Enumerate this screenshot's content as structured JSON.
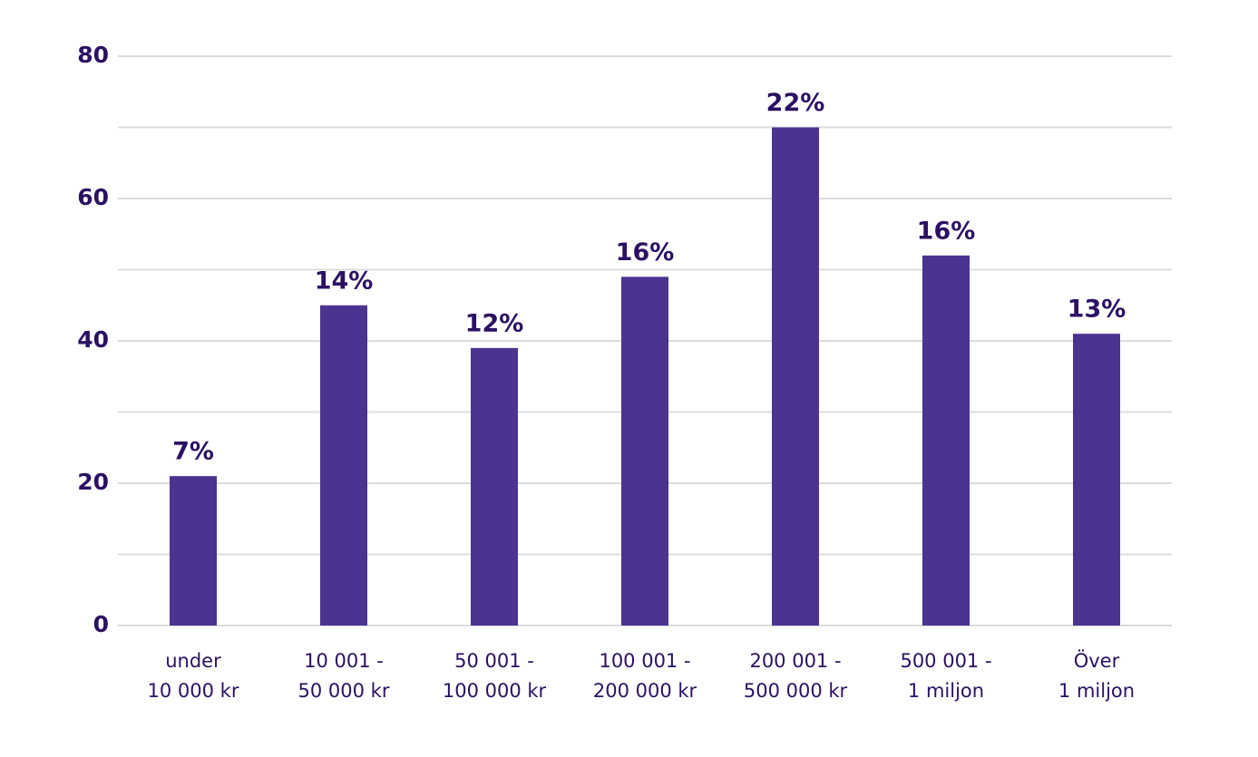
{
  "chart_data": {
    "type": "bar",
    "categories": [
      [
        "under",
        "10 000 kr"
      ],
      [
        "10 001 -",
        "50 000 kr"
      ],
      [
        "50 001 -",
        "100 000 kr"
      ],
      [
        "100 001 -",
        "200 000 kr"
      ],
      [
        "200 001 -",
        "500 000 kr"
      ],
      [
        "500 001 -",
        "1 miljon"
      ],
      [
        "Över",
        "1 miljon"
      ]
    ],
    "values": [
      21,
      45,
      39,
      49,
      70,
      52,
      41
    ],
    "share_labels": [
      "7%",
      "14%",
      "12%",
      "16%",
      "22%",
      "16%",
      "13%"
    ],
    "color": "#4b3390",
    "ylim": [
      0,
      80
    ],
    "yticks": [
      0,
      20,
      40,
      60,
      80
    ],
    "minor_gridlines": [
      10,
      30,
      50,
      70
    ],
    "grid": true
  }
}
